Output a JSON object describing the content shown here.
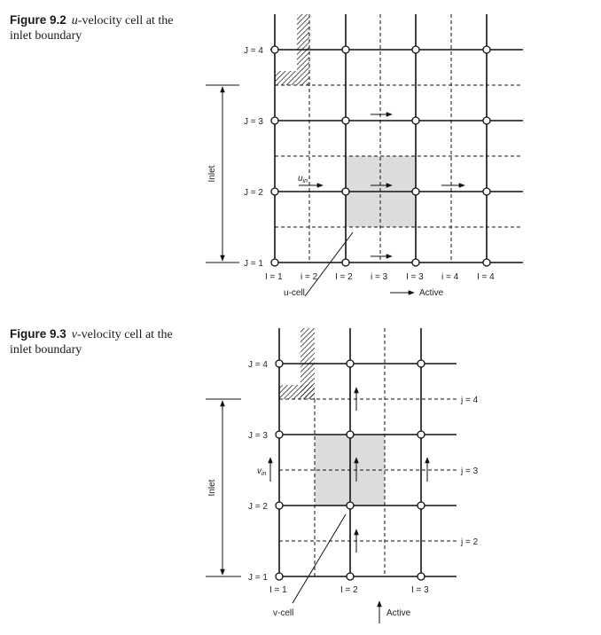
{
  "figure_2": {
    "caption_number": "Figure 9.2",
    "caption_symbol": "u",
    "caption_rest": "-velocity cell at the inlet boundary",
    "inlet_label": "Inlet",
    "row_labels": [
      "J = 4",
      "J = 3",
      "J = 2",
      "J = 1"
    ],
    "col_labels": [
      "I = 1",
      "i = 2",
      "I = 2",
      "i = 3",
      "I = 3",
      "i = 4",
      "I = 4"
    ],
    "velocity_label": "u",
    "velocity_subscript": "in",
    "cell_label": "u-cell",
    "active_label": "Active"
  },
  "figure_3": {
    "caption_number": "Figure 9.3",
    "caption_symbol": "v",
    "caption_rest": "-velocity cell at the inlet boundary",
    "inlet_label": "Inlet",
    "row_labels": [
      "J = 4",
      "J = 3",
      "J = 2",
      "J = 1"
    ],
    "right_labels": [
      "j = 4",
      "j = 3",
      "j = 2"
    ],
    "col_labels": [
      "I = 1",
      "I = 2",
      "I = 3"
    ],
    "velocity_label": "v",
    "velocity_subscript": "in",
    "cell_label": "v-cell",
    "active_label": "Active"
  }
}
